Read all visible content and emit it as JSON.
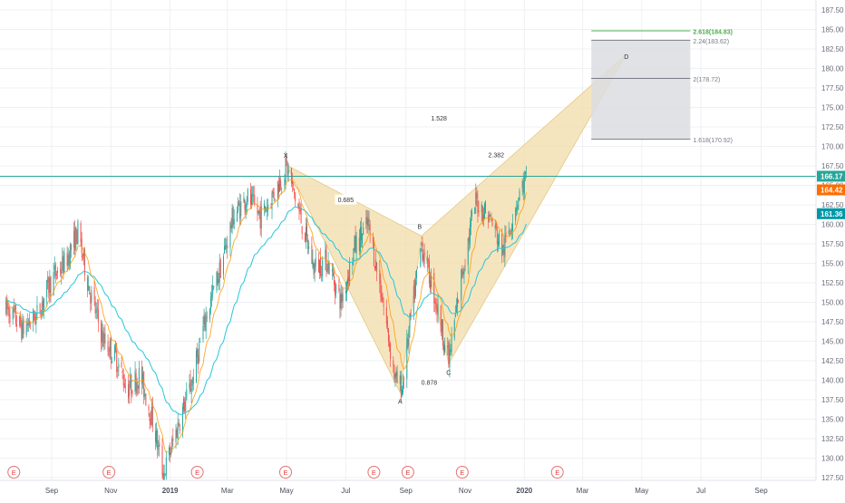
{
  "chart_data": {
    "type": "candlestick",
    "grid": true,
    "x_axis": {
      "labels": [
        "Sep",
        "Nov",
        "2019",
        "Mar",
        "May",
        "Jul",
        "Sep",
        "Nov",
        "2020",
        "Mar",
        "May",
        "Jul",
        "Sep"
      ],
      "bold_labels": [
        "2019",
        "2020"
      ]
    },
    "y_axis": {
      "position": "right",
      "range": [
        125.6,
        188.6
      ],
      "ticks": [
        "127.50",
        "130.00",
        "132.50",
        "135.00",
        "137.50",
        "140.00",
        "142.50",
        "145.00",
        "147.50",
        "150.00",
        "152.50",
        "155.00",
        "157.50",
        "160.00",
        "162.50",
        "165.00",
        "167.50",
        "170.00",
        "172.50",
        "175.00",
        "177.50",
        "180.00",
        "182.50",
        "185.00",
        "187.50"
      ]
    },
    "time_range": {
      "start": "2018-07-15",
      "end": "2020-10-20"
    },
    "price_labels": [
      {
        "value": 166.17,
        "text": "166.17",
        "color": "#26a69a"
      },
      {
        "value": 164.42,
        "text": "164.42",
        "color": "#ff6d00"
      },
      {
        "value": 161.36,
        "text": "161.36",
        "color": "#0097a7"
      }
    ],
    "current_price_line": {
      "value": 166.17,
      "color": "#26a69a"
    },
    "pattern": {
      "points": [
        {
          "label": "X",
          "date": "2019-05-01",
          "price": 167.6
        },
        {
          "label": "A",
          "date": "2019-08-26",
          "price": 138.4
        },
        {
          "label": "B",
          "date": "2019-09-17",
          "price": 158.5
        },
        {
          "label": "C",
          "date": "2019-10-15",
          "price": 142.1
        },
        {
          "label": "D",
          "date": "2020-04-15",
          "price": 181.8
        }
      ],
      "ratios": [
        {
          "text": "0.685",
          "date": "2019-07-01",
          "price": 163.0
        },
        {
          "text": "0.878",
          "date": "2019-09-25",
          "price": 139.6
        },
        {
          "text": "1.528",
          "date": "2019-10-05",
          "price": 173.5
        },
        {
          "text": "2.382",
          "date": "2019-12-03",
          "price": 168.8
        }
      ],
      "fill_color": "#f2dcaa",
      "edge_color": "#e8cf93"
    },
    "fib_box": {
      "start": "2020-03-10",
      "end": "2020-06-20",
      "levels": [
        {
          "text": "2.618(184.83)",
          "value": 184.83,
          "color": "#4caf50"
        },
        {
          "text": "2.24(183.62)",
          "value": 183.62,
          "color": "#787b86"
        },
        {
          "text": "2(178.72)",
          "value": 178.72,
          "color": "#787b86"
        },
        {
          "text": "1.618(170.92)",
          "value": 170.92,
          "color": "#787b86"
        }
      ]
    },
    "earnings_markers": [
      "2018-07-24",
      "2018-10-30",
      "2019-01-29",
      "2019-04-30",
      "2019-07-30",
      "2019-09-03",
      "2019-10-29",
      "2020-02-04"
    ],
    "earnings_label": "E",
    "series": [
      {
        "name": "price",
        "color_up": "#26a69a",
        "color_down": "#ef5350",
        "values": [
          {
            "date": "2018-07-19",
            "price": 149.0
          },
          {
            "date": "2018-08-02",
            "price": 146.5
          },
          {
            "date": "2018-08-17",
            "price": 148.4
          },
          {
            "date": "2018-09-01",
            "price": 153.0
          },
          {
            "date": "2018-09-15",
            "price": 155.1
          },
          {
            "date": "2018-09-28",
            "price": 159.0
          },
          {
            "date": "2018-10-10",
            "price": 151.6
          },
          {
            "date": "2018-10-24",
            "price": 145.2
          },
          {
            "date": "2018-11-06",
            "price": 143.0
          },
          {
            "date": "2018-11-18",
            "price": 138.8
          },
          {
            "date": "2018-12-01",
            "price": 140.7
          },
          {
            "date": "2018-12-15",
            "price": 134.4
          },
          {
            "date": "2018-12-25",
            "price": 127.8
          },
          {
            "date": "2019-01-10",
            "price": 134.6
          },
          {
            "date": "2019-01-24",
            "price": 140.0
          },
          {
            "date": "2019-02-07",
            "price": 148.2
          },
          {
            "date": "2019-02-21",
            "price": 154.0
          },
          {
            "date": "2019-03-07",
            "price": 161.0
          },
          {
            "date": "2019-03-21",
            "price": 163.5
          },
          {
            "date": "2019-04-04",
            "price": 161.0
          },
          {
            "date": "2019-04-18",
            "price": 164.0
          },
          {
            "date": "2019-05-01",
            "price": 167.4
          },
          {
            "date": "2019-05-15",
            "price": 161.0
          },
          {
            "date": "2019-05-29",
            "price": 154.5
          },
          {
            "date": "2019-06-12",
            "price": 155.4
          },
          {
            "date": "2019-06-26",
            "price": 150.0
          },
          {
            "date": "2019-07-10",
            "price": 157.0
          },
          {
            "date": "2019-07-24",
            "price": 160.0
          },
          {
            "date": "2019-08-07",
            "price": 151.0
          },
          {
            "date": "2019-08-21",
            "price": 140.0
          },
          {
            "date": "2019-08-28",
            "price": 139.0
          },
          {
            "date": "2019-09-05",
            "price": 147.0
          },
          {
            "date": "2019-09-17",
            "price": 157.5
          },
          {
            "date": "2019-10-01",
            "price": 150.5
          },
          {
            "date": "2019-10-15",
            "price": 142.4
          },
          {
            "date": "2019-10-29",
            "price": 154.0
          },
          {
            "date": "2019-11-12",
            "price": 163.0
          },
          {
            "date": "2019-11-26",
            "price": 161.0
          },
          {
            "date": "2019-12-10",
            "price": 156.5
          },
          {
            "date": "2019-12-24",
            "price": 163.0
          },
          {
            "date": "2020-01-03",
            "price": 166.17
          }
        ]
      }
    ]
  }
}
